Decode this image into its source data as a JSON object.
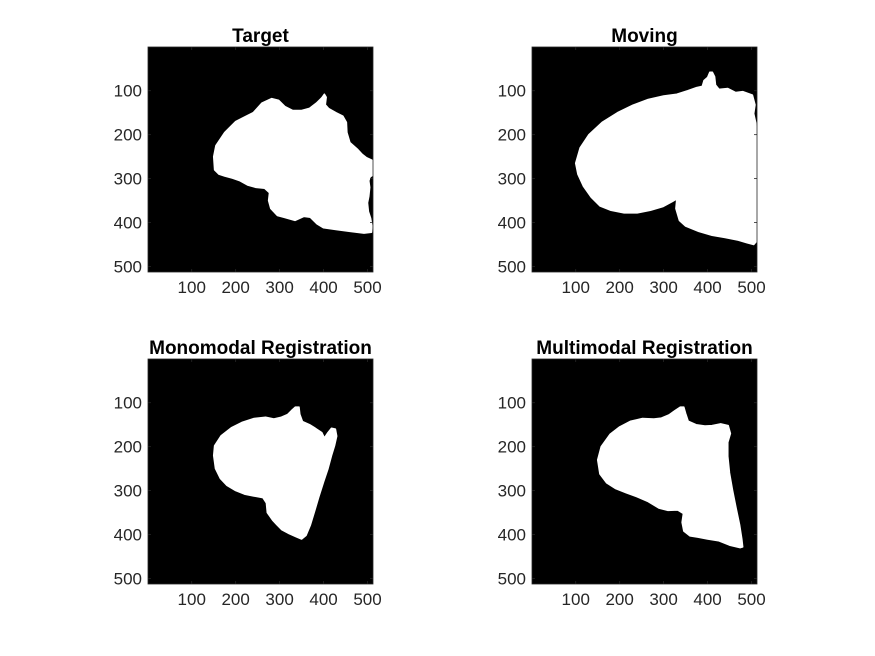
{
  "chart_data": [
    {
      "type": "image",
      "title": "Target",
      "xlim": [
        1,
        512
      ],
      "ylim": [
        1,
        512
      ],
      "y_reversed": true,
      "xticks": [
        100,
        200,
        300,
        400,
        500
      ],
      "yticks": [
        100,
        200,
        300,
        400,
        500
      ],
      "colormap": {
        "background": "#000000",
        "foreground": "#ffffff"
      },
      "mask_outline": [
        [
          150,
          250
        ],
        [
          155,
          225
        ],
        [
          175,
          195
        ],
        [
          200,
          170
        ],
        [
          220,
          160
        ],
        [
          240,
          150
        ],
        [
          260,
          128
        ],
        [
          282,
          118
        ],
        [
          298,
          122
        ],
        [
          312,
          136
        ],
        [
          330,
          145
        ],
        [
          350,
          145
        ],
        [
          368,
          140
        ],
        [
          384,
          128
        ],
        [
          396,
          116
        ],
        [
          402,
          108
        ],
        [
          406,
          115
        ],
        [
          404,
          132
        ],
        [
          412,
          141
        ],
        [
          428,
          150
        ],
        [
          444,
          158
        ],
        [
          452,
          172
        ],
        [
          453,
          195
        ],
        [
          460,
          218
        ],
        [
          478,
          234
        ],
        [
          488,
          245
        ],
        [
          497,
          252
        ],
        [
          510,
          258
        ],
        [
          512,
          260
        ],
        [
          512,
          292
        ],
        [
          506,
          296
        ],
        [
          503,
          305
        ],
        [
          505,
          320
        ],
        [
          503,
          340
        ],
        [
          500,
          355
        ],
        [
          502,
          375
        ],
        [
          507,
          390
        ],
        [
          510,
          408
        ],
        [
          509,
          422
        ],
        [
          492,
          424
        ],
        [
          460,
          420
        ],
        [
          430,
          416
        ],
        [
          400,
          412
        ],
        [
          385,
          403
        ],
        [
          370,
          388
        ],
        [
          355,
          386
        ],
        [
          335,
          395
        ],
        [
          310,
          388
        ],
        [
          295,
          384
        ],
        [
          280,
          368
        ],
        [
          275,
          350
        ],
        [
          277,
          332
        ],
        [
          266,
          322
        ],
        [
          246,
          320
        ],
        [
          228,
          315
        ],
        [
          210,
          305
        ],
        [
          193,
          299
        ],
        [
          175,
          294
        ],
        [
          162,
          290
        ],
        [
          152,
          280
        ]
      ]
    },
    {
      "type": "image",
      "title": "Moving",
      "xlim": [
        1,
        512
      ],
      "ylim": [
        1,
        512
      ],
      "y_reversed": true,
      "xticks": [
        100,
        200,
        300,
        400,
        500
      ],
      "yticks": [
        100,
        200,
        300,
        400,
        500
      ],
      "colormap": {
        "background": "#000000",
        "foreground": "#ffffff"
      },
      "mask_outline": [
        [
          100,
          265
        ],
        [
          110,
          230
        ],
        [
          130,
          200
        ],
        [
          160,
          172
        ],
        [
          195,
          150
        ],
        [
          230,
          133
        ],
        [
          265,
          120
        ],
        [
          300,
          112
        ],
        [
          330,
          108
        ],
        [
          355,
          100
        ],
        [
          375,
          93
        ],
        [
          388,
          90
        ],
        [
          392,
          77
        ],
        [
          400,
          70
        ],
        [
          405,
          58
        ],
        [
          411,
          58
        ],
        [
          416,
          68
        ],
        [
          418,
          87
        ],
        [
          426,
          97
        ],
        [
          446,
          95
        ],
        [
          464,
          104
        ],
        [
          480,
          102
        ],
        [
          502,
          110
        ],
        [
          508,
          132
        ],
        [
          505,
          152
        ],
        [
          510,
          175
        ],
        [
          512,
          190
        ],
        [
          512,
          442
        ],
        [
          505,
          450
        ],
        [
          490,
          446
        ],
        [
          470,
          440
        ],
        [
          440,
          434
        ],
        [
          410,
          429
        ],
        [
          380,
          420
        ],
        [
          350,
          408
        ],
        [
          336,
          395
        ],
        [
          328,
          368
        ],
        [
          330,
          346
        ],
        [
          320,
          352
        ],
        [
          298,
          364
        ],
        [
          270,
          372
        ],
        [
          240,
          378
        ],
        [
          210,
          378
        ],
        [
          180,
          372
        ],
        [
          155,
          362
        ],
        [
          135,
          342
        ],
        [
          118,
          318
        ],
        [
          105,
          290
        ]
      ]
    },
    {
      "type": "image",
      "title": "Monomodal Registration",
      "xlim": [
        1,
        512
      ],
      "ylim": [
        1,
        512
      ],
      "y_reversed": true,
      "xticks": [
        100,
        200,
        300,
        400,
        500
      ],
      "yticks": [
        100,
        200,
        300,
        400,
        500
      ],
      "colormap": {
        "background": "#000000",
        "foreground": "#ffffff"
      },
      "mask_outline": [
        [
          150,
          220
        ],
        [
          152,
          198
        ],
        [
          167,
          175
        ],
        [
          190,
          157
        ],
        [
          214,
          145
        ],
        [
          242,
          136
        ],
        [
          268,
          133
        ],
        [
          287,
          137
        ],
        [
          304,
          133
        ],
        [
          318,
          127
        ],
        [
          327,
          118
        ],
        [
          336,
          110
        ],
        [
          344,
          110
        ],
        [
          346,
          126
        ],
        [
          352,
          143
        ],
        [
          368,
          150
        ],
        [
          381,
          158
        ],
        [
          396,
          168
        ],
        [
          402,
          180
        ],
        [
          410,
          168
        ],
        [
          418,
          158
        ],
        [
          427,
          160
        ],
        [
          430,
          176
        ],
        [
          425,
          198
        ],
        [
          418,
          220
        ],
        [
          410,
          250
        ],
        [
          400,
          280
        ],
        [
          389,
          315
        ],
        [
          380,
          345
        ],
        [
          370,
          378
        ],
        [
          360,
          402
        ],
        [
          350,
          410
        ],
        [
          338,
          405
        ],
        [
          322,
          398
        ],
        [
          305,
          389
        ],
        [
          294,
          378
        ],
        [
          284,
          367
        ],
        [
          272,
          350
        ],
        [
          270,
          328
        ],
        [
          262,
          316
        ],
        [
          240,
          312
        ],
        [
          220,
          308
        ],
        [
          200,
          300
        ],
        [
          180,
          288
        ],
        [
          165,
          272
        ],
        [
          154,
          250
        ]
      ]
    },
    {
      "type": "image",
      "title": "Multimodal Registration",
      "xlim": [
        1,
        512
      ],
      "ylim": [
        1,
        512
      ],
      "y_reversed": true,
      "xticks": [
        100,
        200,
        300,
        400,
        500
      ],
      "yticks": [
        100,
        200,
        300,
        400,
        500
      ],
      "colormap": {
        "background": "#000000",
        "foreground": "#ffffff"
      },
      "mask_outline": [
        [
          150,
          230
        ],
        [
          158,
          200
        ],
        [
          178,
          172
        ],
        [
          200,
          155
        ],
        [
          225,
          142
        ],
        [
          252,
          136
        ],
        [
          278,
          137
        ],
        [
          295,
          135
        ],
        [
          312,
          128
        ],
        [
          326,
          118
        ],
        [
          338,
          110
        ],
        [
          346,
          110
        ],
        [
          350,
          124
        ],
        [
          356,
          142
        ],
        [
          374,
          150
        ],
        [
          394,
          153
        ],
        [
          410,
          152
        ],
        [
          430,
          148
        ],
        [
          447,
          152
        ],
        [
          452,
          170
        ],
        [
          446,
          190
        ],
        [
          446,
          222
        ],
        [
          450,
          260
        ],
        [
          457,
          300
        ],
        [
          465,
          340
        ],
        [
          473,
          378
        ],
        [
          478,
          410
        ],
        [
          480,
          428
        ],
        [
          474,
          430
        ],
        [
          450,
          424
        ],
        [
          425,
          414
        ],
        [
          400,
          410
        ],
        [
          378,
          406
        ],
        [
          360,
          403
        ],
        [
          346,
          392
        ],
        [
          342,
          372
        ],
        [
          345,
          352
        ],
        [
          332,
          344
        ],
        [
          310,
          345
        ],
        [
          290,
          340
        ],
        [
          265,
          325
        ],
        [
          240,
          314
        ],
        [
          215,
          305
        ],
        [
          190,
          295
        ],
        [
          170,
          282
        ],
        [
          155,
          262
        ]
      ]
    }
  ]
}
